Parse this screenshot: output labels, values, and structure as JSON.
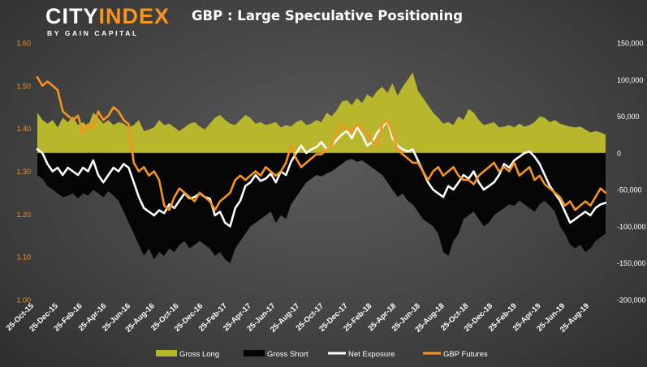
{
  "logo": {
    "brand_a": "CITY",
    "brand_b": "INDEX",
    "tagline": "BY GAIN CAPITAL"
  },
  "colors": {
    "gross_long": "#b8b62c",
    "gross_short": "#050505",
    "net_exposure": "#ffffff",
    "gbp_futures": "#f7941d",
    "left_axis_text": "#f7941d",
    "right_axis_text": "#ffffff"
  },
  "chart_data": {
    "type": "area",
    "title": "GBP : Large Speculative Positioning",
    "left_axis": {
      "ylim": [
        1.0,
        1.6
      ],
      "ticks": [
        "1.00",
        "1.10",
        "1.20",
        "1.30",
        "1.40",
        "1.50",
        "1.60"
      ]
    },
    "right_axis": {
      "ylim": [
        -200000,
        150000
      ],
      "ticks": [
        "-200,000",
        "-150,000",
        "-100,000",
        "-50,000",
        "0",
        "50,000",
        "100,000",
        "150,000"
      ]
    },
    "x_labels": [
      "25-Oct-15",
      "25-Dec-15",
      "25-Feb-16",
      "25-Apr-16",
      "25-Jun-16",
      "25-Aug-16",
      "25-Oct-16",
      "25-Dec-16",
      "25-Feb-17",
      "25-Apr-17",
      "25-Jun-17",
      "25-Aug-17",
      "25-Oct-17",
      "25-Dec-17",
      "25-Feb-18",
      "25-Apr-18",
      "25-Jun-18",
      "25-Aug-18",
      "25-Oct-18",
      "25-Dec-18",
      "25-Feb-19",
      "25-Apr-19",
      "25-Jun-19",
      "25-Aug-19"
    ],
    "legend": [
      "Gross Long",
      "Gross Short",
      "Net Exposure",
      "GBP Futures"
    ],
    "legend_position": "bottom",
    "grid": false,
    "series": [
      {
        "name": "Gross Long",
        "axis": "right",
        "values": [
          55000,
          45000,
          40000,
          45000,
          35000,
          48000,
          42000,
          50000,
          38000,
          42000,
          36000,
          55000,
          48000,
          40000,
          45000,
          38000,
          42000,
          40000,
          35000,
          38000,
          45000,
          30000,
          32000,
          35000,
          45000,
          38000,
          40000,
          35000,
          30000,
          35000,
          40000,
          42000,
          36000,
          32000,
          40000,
          48000,
          52000,
          45000,
          40000,
          38000,
          45000,
          52000,
          48000,
          40000,
          42000,
          38000,
          40000,
          42000,
          35000,
          38000,
          36000,
          42000,
          45000,
          38000,
          40000,
          45000,
          42000,
          55000,
          50000,
          58000,
          70000,
          72000,
          65000,
          75000,
          68000,
          80000,
          75000,
          85000,
          90000,
          82000,
          95000,
          78000,
          90000,
          100000,
          110000,
          85000,
          75000,
          65000,
          55000,
          48000,
          40000,
          42000,
          38000,
          50000,
          45000,
          60000,
          55000,
          45000,
          38000,
          40000,
          42000,
          35000,
          36000,
          38000,
          35000,
          40000,
          36000,
          38000,
          42000,
          50000,
          48000,
          42000,
          45000,
          40000,
          38000,
          36000,
          35000,
          36000,
          32000,
          28000,
          30000,
          28000,
          25000
        ]
      },
      {
        "name": "Gross Short",
        "axis": "right",
        "values": [
          -30000,
          -35000,
          -45000,
          -50000,
          -55000,
          -60000,
          -58000,
          -55000,
          -62000,
          -55000,
          -58000,
          -50000,
          -55000,
          -60000,
          -52000,
          -58000,
          -65000,
          -80000,
          -95000,
          -110000,
          -125000,
          -140000,
          -130000,
          -145000,
          -135000,
          -140000,
          -130000,
          -135000,
          -125000,
          -120000,
          -130000,
          -125000,
          -120000,
          -125000,
          -130000,
          -140000,
          -135000,
          -145000,
          -150000,
          -130000,
          -120000,
          -110000,
          -100000,
          -95000,
          -90000,
          -85000,
          -80000,
          -95000,
          -85000,
          -90000,
          -70000,
          -60000,
          -50000,
          -40000,
          -35000,
          -30000,
          -32000,
          -28000,
          -25000,
          -20000,
          -15000,
          -10000,
          -8000,
          -12000,
          -10000,
          -15000,
          -20000,
          -25000,
          -30000,
          -40000,
          -50000,
          -60000,
          -55000,
          -65000,
          -70000,
          -80000,
          -90000,
          -95000,
          -100000,
          -110000,
          -135000,
          -140000,
          -120000,
          -110000,
          -90000,
          -85000,
          -80000,
          -90000,
          -100000,
          -95000,
          -85000,
          -80000,
          -75000,
          -70000,
          -72000,
          -65000,
          -70000,
          -75000,
          -80000,
          -70000,
          -65000,
          -72000,
          -80000,
          -100000,
          -110000,
          -125000,
          -130000,
          -125000,
          -135000,
          -130000,
          -120000,
          -115000,
          -110000
        ]
      },
      {
        "name": "Net Exposure",
        "axis": "right",
        "values": [
          5000,
          0,
          -15000,
          -25000,
          -20000,
          -30000,
          -20000,
          -25000,
          -30000,
          -20000,
          -25000,
          -10000,
          -30000,
          -40000,
          -30000,
          -20000,
          -25000,
          -15000,
          -20000,
          -40000,
          -60000,
          -75000,
          -80000,
          -85000,
          -78000,
          -82000,
          -70000,
          -75000,
          -65000,
          -55000,
          -62000,
          -60000,
          -55000,
          -60000,
          -62000,
          -85000,
          -80000,
          -95000,
          -100000,
          -75000,
          -65000,
          -45000,
          -40000,
          -30000,
          -38000,
          -35000,
          -28000,
          -40000,
          -25000,
          -30000,
          -12000,
          0,
          10000,
          0,
          5000,
          8000,
          15000,
          5000,
          10000,
          18000,
          25000,
          30000,
          20000,
          35000,
          25000,
          10000,
          15000,
          28000,
          35000,
          45000,
          20000,
          10000,
          5000,
          2000,
          5000,
          -10000,
          -25000,
          -40000,
          -50000,
          -55000,
          -60000,
          -45000,
          -50000,
          -40000,
          -30000,
          -35000,
          -25000,
          -40000,
          -50000,
          -45000,
          -40000,
          -30000,
          -15000,
          -20000,
          -10000,
          -5000,
          0,
          2000,
          -5000,
          -15000,
          -30000,
          -45000,
          -55000,
          -65000,
          -80000,
          -95000,
          -90000,
          -85000,
          -80000,
          -85000,
          -75000,
          -70000,
          -68000
        ]
      },
      {
        "name": "GBP Futures",
        "axis": "left",
        "values": [
          1.52,
          1.5,
          1.51,
          1.5,
          1.49,
          1.44,
          1.43,
          1.42,
          1.43,
          1.39,
          1.41,
          1.4,
          1.44,
          1.42,
          1.43,
          1.45,
          1.44,
          1.42,
          1.41,
          1.32,
          1.3,
          1.31,
          1.29,
          1.3,
          1.28,
          1.22,
          1.21,
          1.24,
          1.26,
          1.25,
          1.24,
          1.23,
          1.25,
          1.24,
          1.23,
          1.21,
          1.23,
          1.24,
          1.25,
          1.28,
          1.29,
          1.28,
          1.29,
          1.3,
          1.29,
          1.31,
          1.3,
          1.29,
          1.3,
          1.32,
          1.36,
          1.33,
          1.31,
          1.32,
          1.33,
          1.34,
          1.34,
          1.35,
          1.36,
          1.39,
          1.41,
          1.4,
          1.39,
          1.41,
          1.4,
          1.39,
          1.37,
          1.36,
          1.41,
          1.42,
          1.39,
          1.35,
          1.34,
          1.33,
          1.32,
          1.32,
          1.3,
          1.28,
          1.3,
          1.31,
          1.29,
          1.3,
          1.31,
          1.29,
          1.28,
          1.28,
          1.27,
          1.29,
          1.3,
          1.31,
          1.32,
          1.3,
          1.31,
          1.3,
          1.32,
          1.29,
          1.3,
          1.31,
          1.28,
          1.29,
          1.27,
          1.26,
          1.25,
          1.24,
          1.22,
          1.23,
          1.21,
          1.22,
          1.23,
          1.22,
          1.24,
          1.26,
          1.25
        ]
      }
    ]
  }
}
